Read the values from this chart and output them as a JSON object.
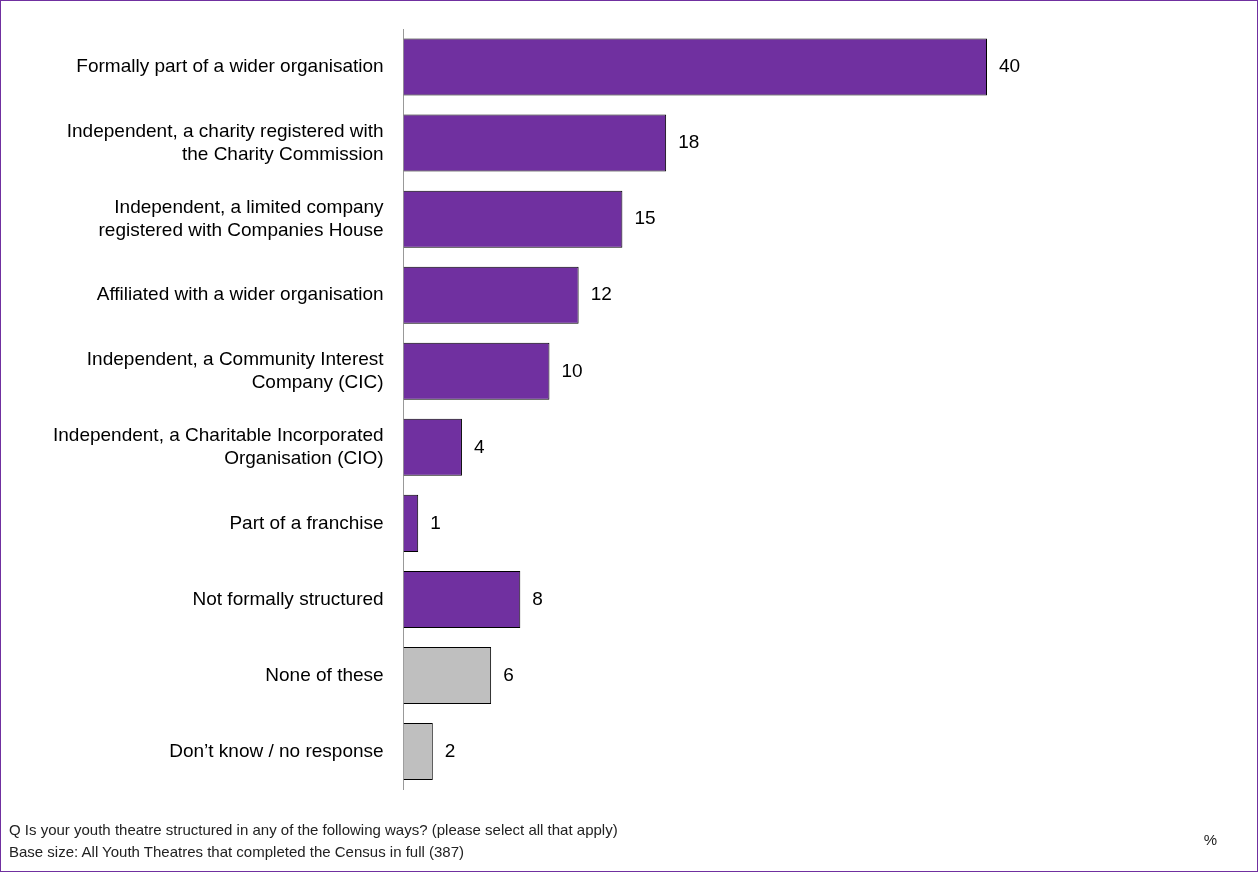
{
  "chart_data": {
    "type": "bar",
    "orientation": "horizontal",
    "data_labels": true,
    "legend": false,
    "categories": [
      "Formally part of a wider organisation",
      "Independent, a charity registered with the Charity Commission",
      "Independent, a limited company registered with Companies House",
      "Affiliated with a wider organisation",
      "Independent, a Community Interest Company (CIC)",
      "Independent, a Charitable Incorporated Organisation (CIO)",
      "Part of a franchise",
      "Not formally structured",
      "None of these",
      "Don’t know / no response"
    ],
    "values": [
      40,
      18,
      15,
      12,
      10,
      4,
      1,
      8,
      6,
      2
    ],
    "colors": [
      "#7030a0",
      "#7030a0",
      "#7030a0",
      "#7030a0",
      "#7030a0",
      "#7030a0",
      "#7030a0",
      "#7030a0",
      "#bfbfbf",
      "#bfbfbf"
    ],
    "tick_labels": "y",
    "annotations": [
      "Q Is your youth theatre structured in any of the following ways? (please select all that apply)",
      "Base size: All Youth Theatres that completed the Census in full (387)",
      "%"
    ]
  }
}
